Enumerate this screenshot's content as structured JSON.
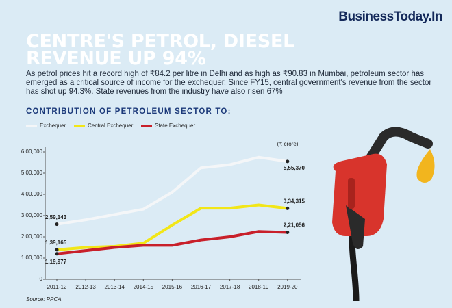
{
  "brand": "BusinessToday.In",
  "chart_data": {
    "type": "line",
    "title": "CENTRE'S PETROL, DIESEL REVENUE UP 94%",
    "subtitle": "As petrol prices hit a record high of ₹84.2 per litre in Delhi and as high as ₹90.83 in Mumbai, petroleum sector has emerged as a critical source of income for the exchequer. Since FY15, central government's revenue from the sector has shot up 94.3%. State revenues from the industry have also risen 67%",
    "heading": "CONTRIBUTION OF PETROLEUM SECTOR TO:",
    "unit_note": "(₹ crore)",
    "source": "Source: PPCA",
    "categories": [
      "2011-12",
      "2012-13",
      "2013-14",
      "2014-15",
      "2015-16",
      "2016-17",
      "2017-18",
      "2018-19",
      "2019-20"
    ],
    "series": [
      {
        "name": "Exchequer",
        "color": "#f4f6f8",
        "values": [
          259143,
          280000,
          305000,
          330000,
          410000,
          525000,
          540000,
          575000,
          555370
        ],
        "value_labels": [
          "2,59,143",
          null,
          null,
          null,
          null,
          null,
          null,
          null,
          "5,55,370"
        ]
      },
      {
        "name": "Central Exchequer",
        "color": "#f2e617",
        "values": [
          139165,
          150000,
          155000,
          170000,
          255000,
          335000,
          335000,
          350000,
          334315
        ],
        "value_labels": [
          "1,39,165",
          null,
          null,
          null,
          null,
          null,
          null,
          null,
          "3,34,315"
        ]
      },
      {
        "name": "State Exchequer",
        "color": "#c8202a",
        "values": [
          119977,
          135000,
          150000,
          160000,
          160000,
          185000,
          200000,
          225000,
          221056
        ],
        "value_labels": [
          "1,19,977",
          null,
          null,
          null,
          null,
          null,
          null,
          null,
          "2,21,056"
        ]
      }
    ],
    "ylim": [
      0,
      600000
    ],
    "yticks": [
      0,
      {
        "value": 100000,
        "label": "1,00,000"
      },
      {
        "value": 200000,
        "label": "2,00,000"
      },
      {
        "value": 300000,
        "label": "3,00,000"
      },
      {
        "value": 400000,
        "label": "4,00,000"
      },
      {
        "value": 500000,
        "label": "5,00,000"
      },
      {
        "value": 600000,
        "label": "6,00,000"
      }
    ],
    "grid": false
  }
}
